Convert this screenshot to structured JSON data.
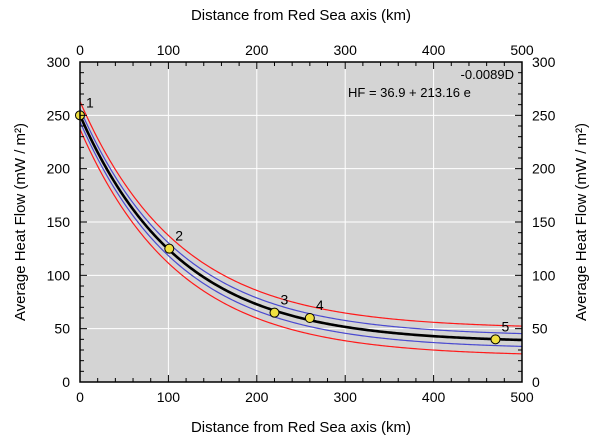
{
  "chart_data": {
    "type": "scatter",
    "xlabel": "Distance from Red Sea axis (km)",
    "ylabel": "Average Heat Flow (mW / m²)",
    "xlim": [
      0,
      500
    ],
    "ylim": [
      0,
      300
    ],
    "x_ticks": [
      0,
      100,
      200,
      300,
      400,
      500
    ],
    "y_ticks": [
      0,
      50,
      100,
      150,
      200,
      250,
      300
    ],
    "grid": true,
    "background": "#d4d4d4",
    "equation_lines": [
      "-0.0089D",
      "HF = 36.9 + 213.16 e"
    ],
    "fit": {
      "a": 36.9,
      "b": 213.16,
      "k": -0.0089,
      "color": "#000000"
    },
    "bands": [
      {
        "offset": -6,
        "color": "#4a4ad0"
      },
      {
        "offset": 6,
        "color": "#4a4ad0"
      },
      {
        "offset": -13,
        "color": "#ff1a1a"
      },
      {
        "offset": 13,
        "color": "#ff1a1a"
      }
    ],
    "points": [
      {
        "label": "1",
        "x": 0,
        "y": 250
      },
      {
        "label": "2",
        "x": 101,
        "y": 125
      },
      {
        "label": "3",
        "x": 220,
        "y": 65
      },
      {
        "label": "4",
        "x": 260,
        "y": 60
      },
      {
        "label": "5",
        "x": 470,
        "y": 40
      }
    ],
    "point_color": "#f0e040"
  }
}
